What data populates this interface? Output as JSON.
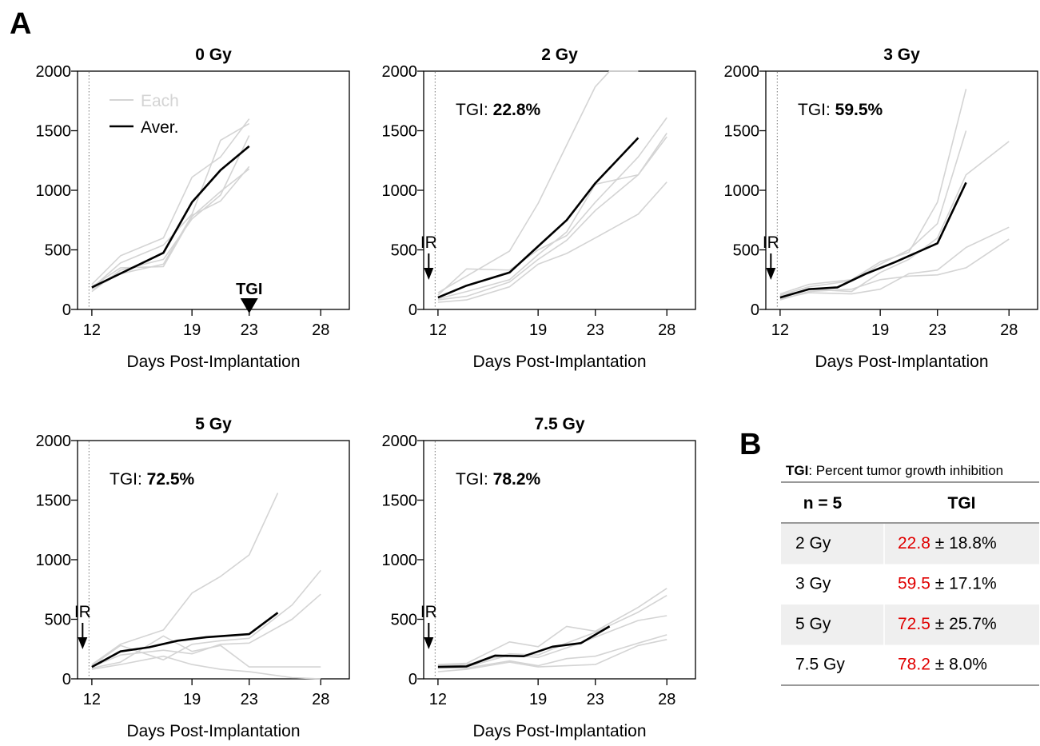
{
  "labels": {
    "panel_a": "A",
    "panel_b": "B"
  },
  "style": {
    "each_color": "#d4d4d4",
    "avg_color": "#000000",
    "highlight_color": "#e00000",
    "stripe_color": "#efefef"
  },
  "chart_data": [
    {
      "type": "line",
      "title": "0 Gy",
      "xlabel": "Days Post-Implantation",
      "ylabel": "",
      "xlim": [
        11,
        30
      ],
      "ylim": [
        0,
        2000
      ],
      "xticks": [
        12,
        19,
        23,
        28
      ],
      "yticks": [
        0,
        500,
        1000,
        1500,
        2000
      ],
      "ir_day": 11.8,
      "legend": {
        "position": "top-left",
        "each": "Each",
        "avg": "Aver."
      },
      "tgi_marker": {
        "day": 23,
        "label": "TGI"
      },
      "series": [
        {
          "role": "each",
          "x": [
            12,
            14,
            17,
            19,
            21,
            23
          ],
          "y": [
            210,
            450,
            600,
            1110,
            1280,
            1600
          ]
        },
        {
          "role": "each",
          "x": [
            12,
            14,
            17,
            19,
            21,
            23
          ],
          "y": [
            180,
            390,
            540,
            800,
            1420,
            1560
          ]
        },
        {
          "role": "each",
          "x": [
            12,
            14,
            17,
            19,
            21,
            23
          ],
          "y": [
            150,
            330,
            420,
            760,
            960,
            1460
          ]
        },
        {
          "role": "each",
          "x": [
            12,
            14,
            17,
            19,
            21,
            23
          ],
          "y": [
            170,
            300,
            380,
            790,
            910,
            1200
          ]
        },
        {
          "role": "each",
          "x": [
            12,
            14,
            17,
            19,
            21,
            23
          ],
          "y": [
            190,
            350,
            360,
            780,
            990,
            1180
          ]
        },
        {
          "role": "average",
          "x": [
            12,
            17,
            19,
            21,
            23
          ],
          "y": [
            185,
            475,
            900,
            1170,
            1370
          ]
        }
      ]
    },
    {
      "type": "line",
      "title": "2 Gy",
      "xlabel": "Days Post-Implantation",
      "ylabel": "",
      "xlim": [
        11,
        30
      ],
      "ylim": [
        0,
        2000
      ],
      "xticks": [
        12,
        19,
        23,
        28
      ],
      "yticks": [
        0,
        500,
        1000,
        1500,
        2000
      ],
      "ir_day": 11.8,
      "ir_label": "IR",
      "tgi": {
        "prefix": "TGI: ",
        "value": "22.8%"
      },
      "series": [
        {
          "role": "each",
          "x": [
            12,
            14,
            17,
            19,
            21,
            23,
            24,
            26
          ],
          "y": [
            140,
            280,
            490,
            890,
            1380,
            1870,
            2000,
            2000
          ]
        },
        {
          "role": "each",
          "x": [
            12,
            14,
            17,
            19,
            21,
            23,
            26,
            28
          ],
          "y": [
            120,
            340,
            330,
            500,
            620,
            900,
            1280,
            1610
          ]
        },
        {
          "role": "each",
          "x": [
            12,
            14,
            17,
            19,
            21,
            23,
            26,
            28
          ],
          "y": [
            90,
            150,
            250,
            460,
            650,
            1050,
            1130,
            1480
          ]
        },
        {
          "role": "each",
          "x": [
            12,
            14,
            17,
            19,
            21,
            23,
            26,
            28
          ],
          "y": [
            80,
            110,
            230,
            420,
            580,
            830,
            1130,
            1450
          ]
        },
        {
          "role": "each",
          "x": [
            12,
            14,
            17,
            19,
            21,
            23,
            26,
            28
          ],
          "y": [
            60,
            80,
            190,
            380,
            470,
            600,
            800,
            1070
          ]
        },
        {
          "role": "average",
          "x": [
            12,
            14,
            17,
            19,
            21,
            23,
            26
          ],
          "y": [
            100,
            200,
            310,
            530,
            750,
            1060,
            1440
          ]
        }
      ]
    },
    {
      "type": "line",
      "title": "3 Gy",
      "xlabel": "Days Post-Implantation",
      "ylabel": "",
      "xlim": [
        11,
        30
      ],
      "ylim": [
        0,
        2000
      ],
      "xticks": [
        12,
        19,
        23,
        28
      ],
      "yticks": [
        0,
        500,
        1000,
        1500,
        2000
      ],
      "ir_day": 11.8,
      "ir_label": "IR",
      "tgi": {
        "prefix": "TGI: ",
        "value": "59.5%"
      },
      "series": [
        {
          "role": "each",
          "x": [
            12,
            14,
            17,
            19,
            21,
            23,
            25
          ],
          "y": [
            130,
            210,
            250,
            400,
            480,
            900,
            1850
          ]
        },
        {
          "role": "each",
          "x": [
            12,
            14,
            17,
            19,
            21,
            23,
            25
          ],
          "y": [
            120,
            190,
            240,
            380,
            500,
            720,
            1500
          ]
        },
        {
          "role": "each",
          "x": [
            12,
            14,
            17,
            19,
            21,
            23,
            25,
            28
          ],
          "y": [
            110,
            170,
            150,
            310,
            420,
            600,
            1130,
            1410
          ]
        },
        {
          "role": "each",
          "x": [
            12,
            14,
            17,
            19,
            21,
            23,
            25,
            28
          ],
          "y": [
            90,
            140,
            130,
            170,
            300,
            330,
            520,
            690
          ]
        },
        {
          "role": "each",
          "x": [
            12,
            14,
            17,
            19,
            21,
            23,
            25,
            28
          ],
          "y": [
            80,
            150,
            170,
            250,
            280,
            290,
            350,
            590
          ]
        },
        {
          "role": "average",
          "x": [
            12,
            14,
            16,
            18,
            20,
            23,
            25
          ],
          "y": [
            100,
            170,
            185,
            300,
            395,
            555,
            1065
          ]
        }
      ]
    },
    {
      "type": "line",
      "title": "5 Gy",
      "xlabel": "Days Post-Implantation",
      "ylabel": "",
      "xlim": [
        11,
        30
      ],
      "ylim": [
        0,
        2000
      ],
      "xticks": [
        12,
        19,
        23,
        28
      ],
      "yticks": [
        0,
        500,
        1000,
        1500,
        2000
      ],
      "ir_day": 11.8,
      "ir_label": "IR",
      "tgi": {
        "prefix": "TGI: ",
        "value": "72.5%"
      },
      "series": [
        {
          "role": "each",
          "x": [
            12,
            14,
            17,
            19,
            21,
            23,
            25
          ],
          "y": [
            120,
            290,
            410,
            720,
            860,
            1040,
            1560
          ]
        },
        {
          "role": "each",
          "x": [
            12,
            14,
            17,
            19,
            21,
            23,
            26,
            28
          ],
          "y": [
            110,
            280,
            160,
            290,
            320,
            340,
            620,
            910
          ]
        },
        {
          "role": "each",
          "x": [
            12,
            14,
            17,
            19,
            21,
            23,
            26,
            28
          ],
          "y": [
            100,
            200,
            240,
            210,
            290,
            300,
            500,
            710
          ]
        },
        {
          "role": "each",
          "x": [
            12,
            14,
            17,
            19,
            21,
            23,
            26,
            28
          ],
          "y": [
            90,
            140,
            360,
            230,
            280,
            100,
            100,
            100
          ]
        },
        {
          "role": "each",
          "x": [
            12,
            14,
            17,
            19,
            21,
            23,
            26,
            28
          ],
          "y": [
            80,
            120,
            190,
            120,
            80,
            60,
            10,
            0
          ]
        },
        {
          "role": "average",
          "x": [
            12,
            14,
            16,
            18,
            20,
            23,
            25
          ],
          "y": [
            100,
            230,
            265,
            320,
            350,
            375,
            555
          ]
        }
      ]
    },
    {
      "type": "line",
      "title": "7.5 Gy",
      "xlabel": "Days Post-Implantation",
      "ylabel": "",
      "xlim": [
        11,
        30
      ],
      "ylim": [
        0,
        2000
      ],
      "xticks": [
        12,
        19,
        23,
        28
      ],
      "yticks": [
        0,
        500,
        1000,
        1500,
        2000
      ],
      "ir_day": 11.8,
      "ir_label": "IR",
      "tgi": {
        "prefix": "TGI: ",
        "value": "78.2%"
      },
      "series": [
        {
          "role": "each",
          "x": [
            12,
            14,
            17,
            19,
            21,
            23,
            26,
            28
          ],
          "y": [
            120,
            130,
            310,
            270,
            440,
            400,
            600,
            760
          ]
        },
        {
          "role": "each",
          "x": [
            12,
            14,
            17,
            19,
            21,
            23,
            26,
            28
          ],
          "y": [
            110,
            120,
            210,
            200,
            300,
            390,
            560,
            700
          ]
        },
        {
          "role": "each",
          "x": [
            12,
            14,
            17,
            19,
            21,
            23,
            26,
            28
          ],
          "y": [
            100,
            100,
            200,
            180,
            260,
            350,
            490,
            530
          ]
        },
        {
          "role": "each",
          "x": [
            12,
            14,
            17,
            19,
            21,
            23,
            26,
            28
          ],
          "y": [
            90,
            90,
            150,
            110,
            170,
            190,
            300,
            370
          ]
        },
        {
          "role": "each",
          "x": [
            12,
            14,
            17,
            19,
            21,
            23,
            26,
            28
          ],
          "y": [
            60,
            80,
            140,
            100,
            110,
            120,
            280,
            330
          ]
        },
        {
          "role": "average",
          "x": [
            12,
            14,
            16,
            18,
            20,
            22,
            24
          ],
          "y": [
            100,
            105,
            195,
            190,
            270,
            300,
            440
          ]
        }
      ]
    }
  ],
  "table": {
    "caption_bold": "TGI",
    "caption_rest": ":  Percent tumor growth inhibition",
    "headers": [
      "n = 5",
      "TGI"
    ],
    "rows": [
      {
        "dose": "2 Gy",
        "value": "22.8",
        "error": " ± 18.8%"
      },
      {
        "dose": "3 Gy",
        "value": "59.5",
        "error": " ± 17.1%"
      },
      {
        "dose": "5 Gy",
        "value": "72.5",
        "error": " ± 25.7%"
      },
      {
        "dose": "7.5 Gy",
        "value": "78.2",
        "error": " ± 8.0%"
      }
    ]
  }
}
